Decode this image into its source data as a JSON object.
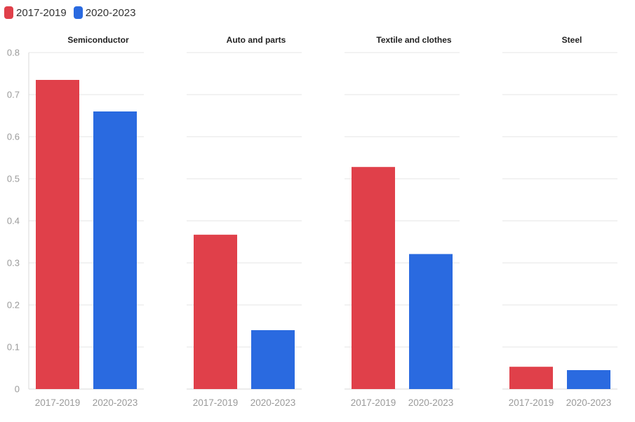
{
  "chart_data": {
    "type": "bar",
    "title": "",
    "legend": {
      "placement": "top-left"
    },
    "series": [
      {
        "name": "2017-2019",
        "color": "#e0404a"
      },
      {
        "name": "2020-2023",
        "color": "#2a6ae0"
      }
    ],
    "ylim": [
      0,
      0.8
    ],
    "yticks": [
      "0",
      "0.1",
      "0.2",
      "0.3",
      "0.4",
      "0.5",
      "0.6",
      "0.7",
      "0.8"
    ],
    "grid": true,
    "panels": [
      {
        "title": "Semiconductor",
        "categories": [
          "2017-2019",
          "2020-2023"
        ],
        "values": [
          0.735,
          0.66
        ]
      },
      {
        "title": "Auto and parts",
        "categories": [
          "2017-2019",
          "2020-2023"
        ],
        "values": [
          0.367,
          0.14
        ]
      },
      {
        "title": "Textile and clothes",
        "categories": [
          "2017-2019",
          "2020-2023"
        ],
        "values": [
          0.528,
          0.321
        ]
      },
      {
        "title": "Steel",
        "categories": [
          "2017-2019",
          "2020-2023"
        ],
        "values": [
          0.053,
          0.045
        ]
      }
    ]
  }
}
